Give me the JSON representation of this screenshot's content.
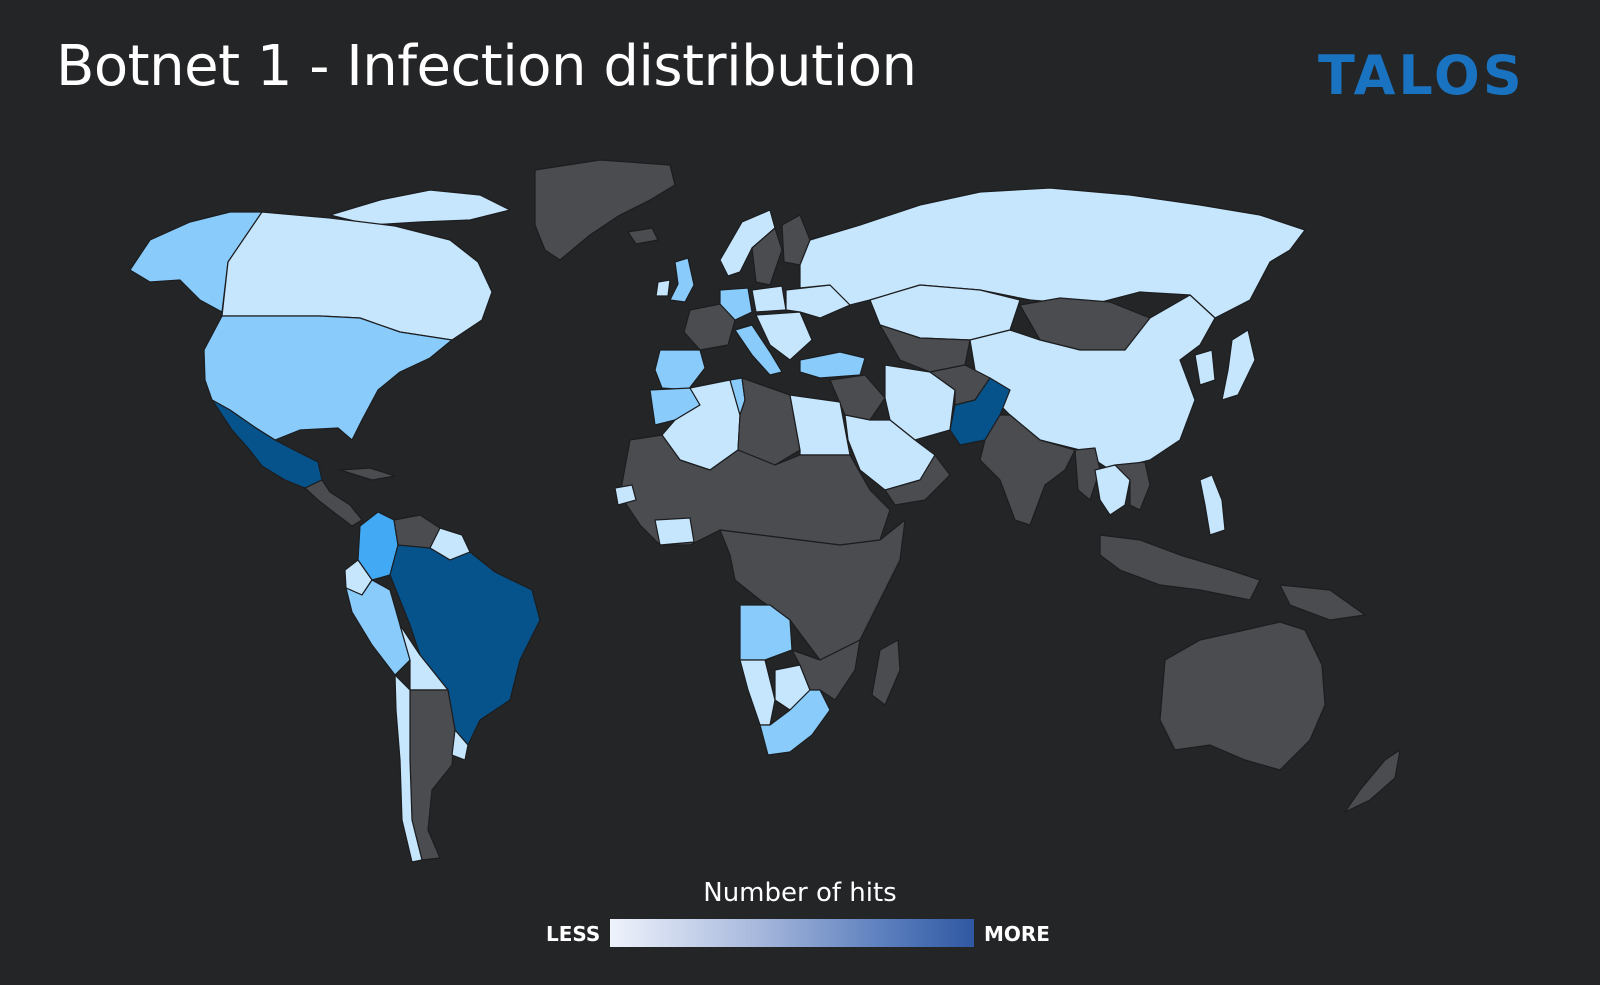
{
  "header": {
    "title": "Botnet 1 - Infection distribution",
    "logo_text": "TALOS"
  },
  "legend": {
    "title": "Number of hits",
    "low_label": "LESS",
    "high_label": "MORE"
  },
  "colors": {
    "background": "#242527",
    "no_data": "#4b4c50",
    "border": "#1c1d1f",
    "level_1": "#c6e6fd",
    "level_2": "#89ccfc",
    "level_3": "#42aaf5",
    "level_4": "#06538c",
    "logo": "#1a73c0",
    "gradient_start": "#eef2fb",
    "gradient_end": "#2f58a2"
  }
}
